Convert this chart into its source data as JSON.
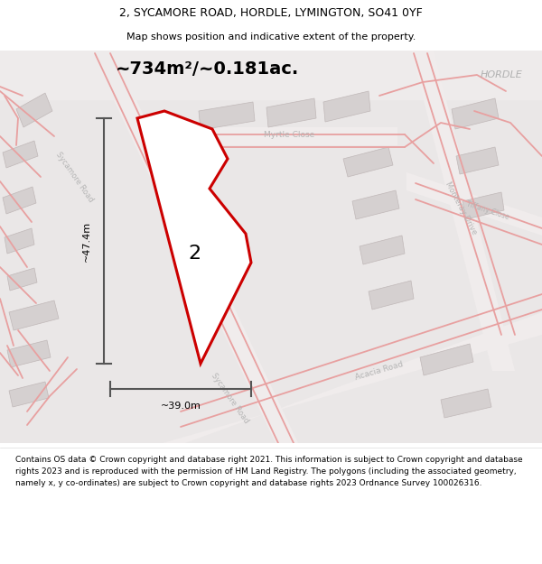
{
  "title_line1": "2, SYCAMORE ROAD, HORDLE, LYMINGTON, SO41 0YF",
  "title_line2": "Map shows position and indicative extent of the property.",
  "area_label": "~734m²/~0.181ac.",
  "plot_number": "2",
  "dim_width": "~39.0m",
  "dim_height": "~47.4m",
  "hordle_label": "HORDLE",
  "footer_text": "Contains OS data © Crown copyright and database right 2021. This information is subject to Crown copyright and database rights 2023 and is reproduced with the permission of HM Land Registry. The polygons (including the associated geometry, namely x, y co-ordinates) are subject to Crown copyright and database rights 2023 Ordnance Survey 100026316.",
  "plot_edge": "#cc0000",
  "dim_line_color": "#555555",
  "map_bg": "#eae7e7",
  "road_light": "#f5f2f2",
  "pink": "#e8a0a0",
  "building_fill": "#d5d0d0",
  "building_edge": "#c0b8b8"
}
